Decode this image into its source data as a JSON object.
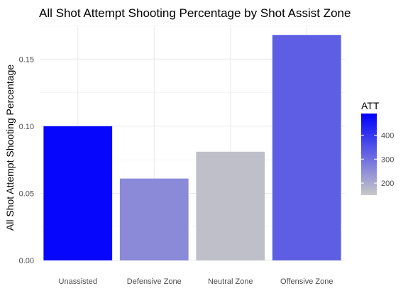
{
  "chart_data": {
    "type": "bar",
    "title": "All Shot Attempt Shooting Percentage by Shot Assist Zone",
    "xlabel": "",
    "ylabel": "All Shot Attempt Shooting Percentage",
    "categories": [
      "Unassisted",
      "Defensive Zone",
      "Neutral Zone",
      "Offensive Zone"
    ],
    "values": [
      0.1,
      0.061,
      0.081,
      0.168
    ],
    "att": [
      480,
      255,
      165,
      330
    ],
    "ylim": [
      0,
      0.175
    ],
    "yticks": [
      0.0,
      0.05,
      0.1,
      0.15
    ],
    "ytick_labels": [
      "0.00",
      "0.05",
      "0.10",
      "0.15"
    ],
    "grid": true,
    "legend": {
      "title": "ATT",
      "placement": "right",
      "type": "colorbar",
      "range": [
        150,
        490
      ],
      "ticks": [
        200,
        300,
        400
      ],
      "tick_labels": [
        "200",
        "300",
        "400"
      ],
      "color_low": "#c8c8c8",
      "color_high": "#0000ff"
    }
  }
}
